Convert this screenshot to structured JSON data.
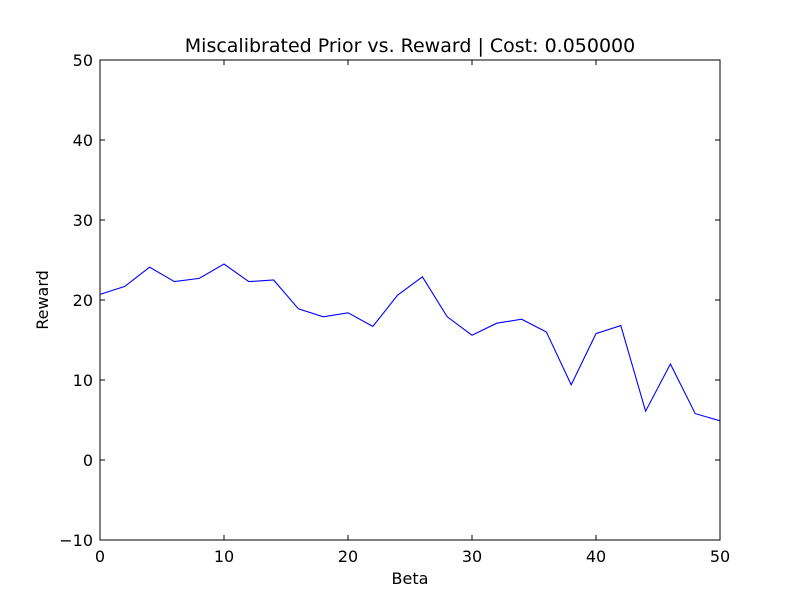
{
  "chart_data": {
    "type": "line",
    "title": "Miscalibrated Prior vs. Reward | Cost: 0.050000",
    "xlabel": "Beta",
    "ylabel": "Reward",
    "xlim": [
      0,
      50
    ],
    "ylim": [
      -10,
      50
    ],
    "xticks": [
      "0",
      "10",
      "20",
      "30",
      "40",
      "50"
    ],
    "yticks": [
      "−10",
      "0",
      "10",
      "20",
      "30",
      "40",
      "50"
    ],
    "grid": false,
    "series": [
      {
        "color": "#0000ff",
        "x": [
          0,
          2,
          4,
          6,
          8,
          10,
          12,
          14,
          16,
          18,
          20,
          22,
          24,
          26,
          28,
          30,
          32,
          34,
          36,
          38,
          40,
          42,
          44,
          46,
          48,
          50
        ],
        "y": [
          20.7,
          21.7,
          24.1,
          22.3,
          22.7,
          24.5,
          22.3,
          22.5,
          18.9,
          17.9,
          18.4,
          16.7,
          20.6,
          22.9,
          17.9,
          15.6,
          17.1,
          17.6,
          16.0,
          9.4,
          15.8,
          16.8,
          6.1,
          12.0,
          5.8,
          4.9
        ]
      }
    ]
  }
}
